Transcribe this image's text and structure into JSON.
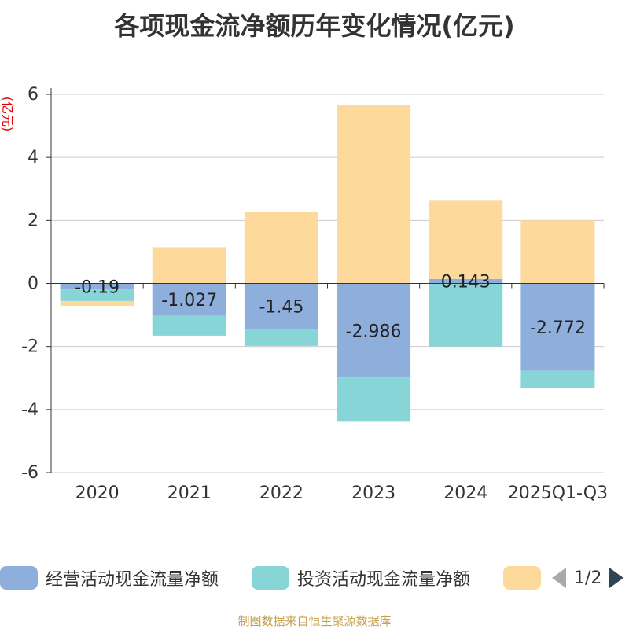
{
  "chart_data": {
    "type": "bar",
    "stacked": true,
    "title": "各项现金流净额历年变化情况(亿元)",
    "ylabel": "(亿元)",
    "categories": [
      "2020",
      "2021",
      "2022",
      "2023",
      "2024",
      "2025Q1-Q3"
    ],
    "ylim": [
      -6,
      6
    ],
    "yticks": [
      -6,
      -4,
      -2,
      0,
      2,
      4,
      6
    ],
    "series": [
      {
        "name": "经营活动现金流量净额",
        "color": "#8eaedb",
        "values": [
          -0.19,
          -1.027,
          -1.45,
          -2.986,
          0.143,
          -2.772
        ],
        "labels": [
          "-0.19",
          "-1.027",
          "-1.45",
          "-2.986",
          "0.143",
          "-2.772"
        ]
      },
      {
        "name": "投资活动现金流量净额",
        "color": "#88d5d7",
        "values": [
          -0.37,
          -0.63,
          -0.53,
          -1.4,
          -2.0,
          -0.55
        ]
      },
      {
        "name": "",
        "color": "#fdd99b",
        "values": [
          -0.15,
          1.15,
          2.28,
          5.67,
          2.48,
          2.0
        ]
      }
    ]
  },
  "legend": {
    "page_text": "1/2"
  },
  "source": "制图数据来自恒生聚源数据库"
}
